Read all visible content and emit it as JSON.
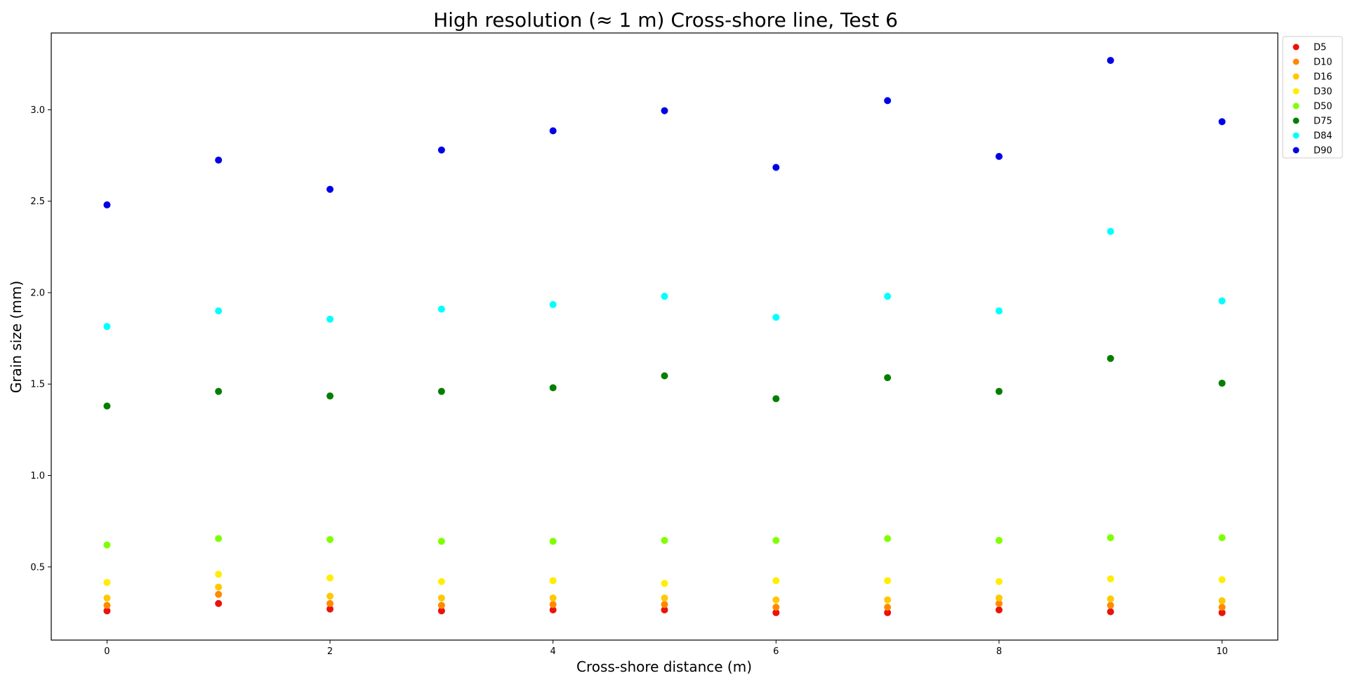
{
  "chart_data": {
    "type": "scatter",
    "title": "High resolution (≈ 1 m) Cross-shore line, Test 6",
    "xlabel": "Cross-shore distance (m)",
    "ylabel": "Grain size (mm)",
    "xlim": [
      -0.5,
      10.5
    ],
    "ylim": [
      0.1,
      3.42
    ],
    "x_ticks": [
      0,
      2,
      4,
      6,
      8,
      10
    ],
    "x_tick_labels": [
      "0",
      "2",
      "4",
      "6",
      "8",
      "10"
    ],
    "y_ticks": [
      0.5,
      1.0,
      1.5,
      2.0,
      2.5,
      3.0
    ],
    "y_tick_labels": [
      "0.5",
      "1.0",
      "1.5",
      "2.0",
      "2.5",
      "3.0"
    ],
    "grid": false,
    "legend_position": "outside top-right",
    "x": [
      0,
      1,
      2,
      3,
      4,
      5,
      6,
      7,
      8,
      9,
      10
    ],
    "series": [
      {
        "name": "D5",
        "color": "#e8140c",
        "values": [
          0.26,
          0.3,
          0.27,
          0.26,
          0.265,
          0.265,
          0.25,
          0.25,
          0.265,
          0.255,
          0.25
        ]
      },
      {
        "name": "D10",
        "color": "#ff8a00",
        "values": [
          0.29,
          0.35,
          0.3,
          0.29,
          0.295,
          0.295,
          0.28,
          0.28,
          0.3,
          0.29,
          0.28
        ]
      },
      {
        "name": "D16",
        "color": "#ffc800",
        "values": [
          0.33,
          0.39,
          0.34,
          0.33,
          0.33,
          0.33,
          0.32,
          0.32,
          0.33,
          0.325,
          0.315
        ]
      },
      {
        "name": "D30",
        "color": "#ffee00",
        "values": [
          0.415,
          0.46,
          0.44,
          0.42,
          0.425,
          0.41,
          0.425,
          0.425,
          0.42,
          0.435,
          0.43
        ]
      },
      {
        "name": "D50",
        "color": "#7fff00",
        "values": [
          0.62,
          0.655,
          0.65,
          0.64,
          0.64,
          0.645,
          0.645,
          0.655,
          0.645,
          0.66,
          0.66
        ]
      },
      {
        "name": "D75",
        "color": "#007f00",
        "values": [
          1.38,
          1.46,
          1.435,
          1.46,
          1.48,
          1.545,
          1.42,
          1.535,
          1.46,
          1.64,
          1.505
        ]
      },
      {
        "name": "D84",
        "color": "#00ffff",
        "values": [
          1.815,
          1.9,
          1.855,
          1.91,
          1.935,
          1.98,
          1.865,
          1.98,
          1.9,
          2.335,
          1.955
        ]
      },
      {
        "name": "D90",
        "color": "#0000e6",
        "values": [
          2.48,
          2.725,
          2.565,
          2.78,
          2.885,
          2.995,
          2.685,
          3.05,
          2.745,
          3.27,
          2.935
        ]
      }
    ]
  }
}
